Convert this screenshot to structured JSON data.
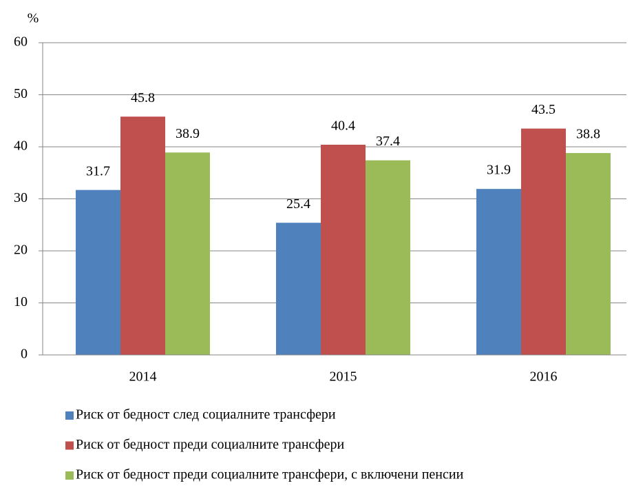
{
  "chart_data": {
    "type": "bar",
    "y_axis_label": "%",
    "categories": [
      "2014",
      "2015",
      "2016"
    ],
    "series": [
      {
        "name": "Риск от бедност след социалните трансфери",
        "color": "#4f81bd",
        "values": [
          31.7,
          25.4,
          31.9
        ]
      },
      {
        "name": "Риск от бедност преди социалните трансфери",
        "color": "#c0504d",
        "values": [
          45.8,
          40.4,
          43.5
        ]
      },
      {
        "name": "Риск от бедност преди социалните трансфери, с включени пенсии",
        "color": "#9bbb59",
        "values": [
          38.9,
          37.4,
          38.8
        ]
      }
    ],
    "ylim": [
      0,
      60
    ],
    "yticks": [
      0,
      10,
      20,
      30,
      40,
      50,
      60
    ],
    "grid": true,
    "legend": "bottom"
  }
}
